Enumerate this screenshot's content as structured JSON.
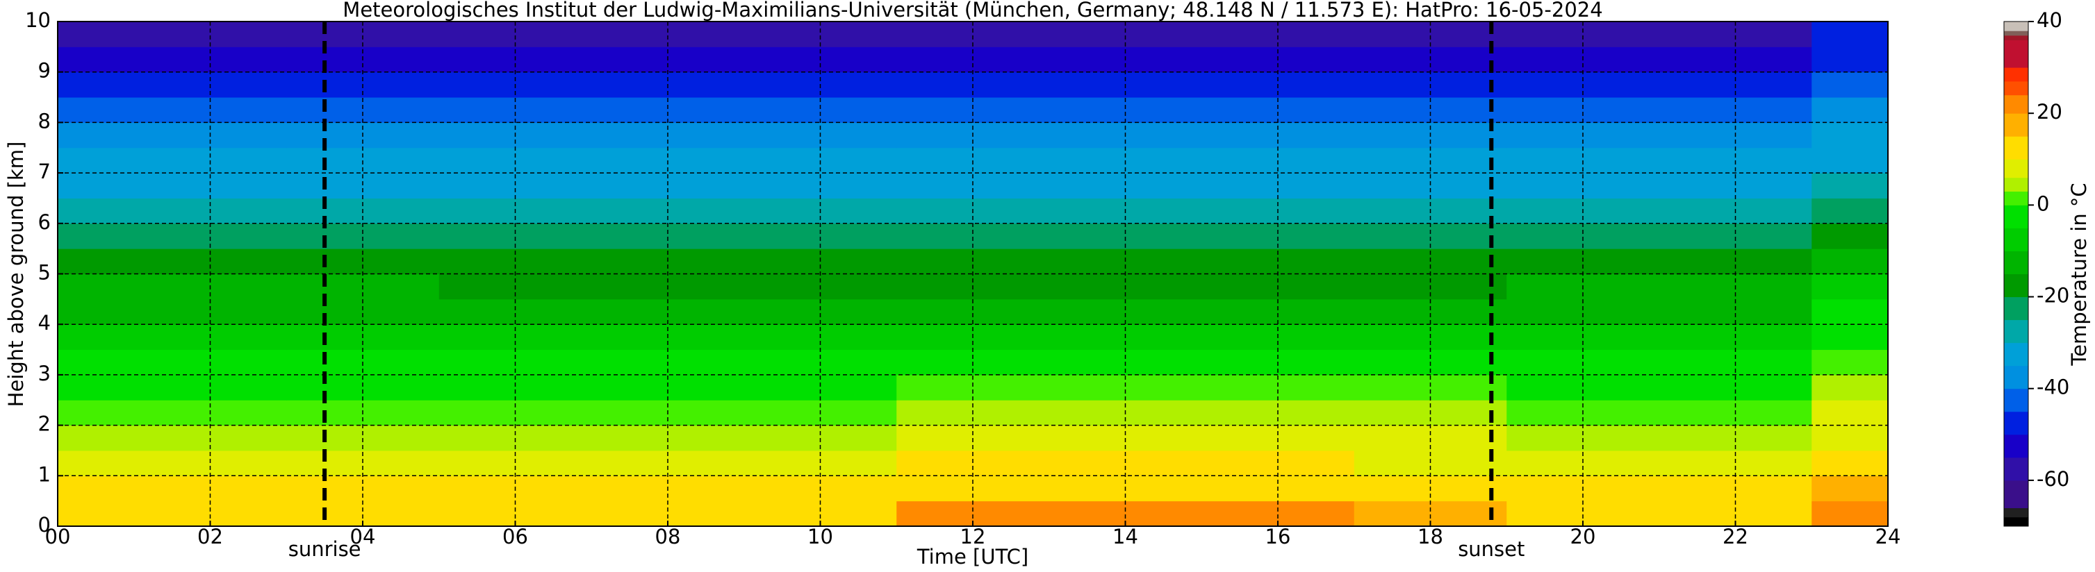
{
  "chart_data": {
    "type": "heatmap",
    "title": "Meteorologisches Institut der Ludwig-Maximilians-Universität (München, Germany; 48.148 N / 11.573 E):    HatPro: 16-05-2024",
    "x_label": "Time [UTC]",
    "y_label": "Height above ground [km]",
    "colorbar_label": "Temperature in $^\\circ$C",
    "x_bins": [
      0,
      3,
      5,
      11,
      17,
      19,
      23,
      24
    ],
    "y_bins": [
      0,
      0.5,
      1,
      1.5,
      2,
      2.5,
      3,
      3.5,
      4,
      4.5,
      5,
      5.5,
      6,
      6.5,
      7,
      7.5,
      8,
      8.5,
      9,
      9.5,
      10
    ],
    "z": [
      [
        12,
        12,
        14,
        20,
        17,
        12,
        22
      ],
      [
        10,
        10,
        11,
        14,
        13,
        10,
        16
      ],
      [
        7,
        7,
        8,
        10,
        9,
        7,
        12
      ],
      [
        4,
        4,
        5,
        6,
        6,
        5,
        9
      ],
      [
        2,
        2,
        2,
        3,
        3,
        2,
        6
      ],
      [
        -1,
        -1,
        -1,
        0,
        0,
        -1,
        4
      ],
      [
        -4,
        -4,
        -4,
        -3,
        -3,
        -4,
        2
      ],
      [
        -7,
        -7,
        -8,
        -7,
        -7,
        -7,
        -1
      ],
      [
        -11,
        -11,
        -12,
        -11,
        -11,
        -11,
        -5
      ],
      [
        -15,
        -15,
        -16,
        -16,
        -16,
        -15,
        -9
      ],
      [
        -18,
        -18,
        -20,
        -20,
        -20,
        -19,
        -13
      ],
      [
        -21,
        -21,
        -24,
        -24,
        -24,
        -23,
        -17
      ],
      [
        -27,
        -27,
        -28,
        -28,
        -28,
        -27,
        -22
      ],
      [
        -31,
        -31,
        -31,
        -31,
        -31,
        -31,
        -27
      ],
      [
        -35,
        -35,
        -35,
        -35,
        -35,
        -35,
        -31
      ],
      [
        -38,
        -38,
        -38,
        -38,
        -38,
        -38,
        -35
      ],
      [
        -42,
        -42,
        -42,
        -42,
        -42,
        -42,
        -38
      ],
      [
        -48,
        -48,
        -48,
        -48,
        -48,
        -48,
        -42
      ],
      [
        -53,
        -53,
        -53,
        -53,
        -53,
        -53,
        -46
      ],
      [
        -56,
        -56,
        -56,
        -56,
        -56,
        -56,
        -50
      ]
    ],
    "xlim": [
      0,
      24
    ],
    "ylim": [
      0,
      10
    ],
    "xticks": [
      {
        "value": 0,
        "label": "00"
      },
      {
        "value": 2,
        "label": "02"
      },
      {
        "value": 4,
        "label": "04"
      },
      {
        "value": 6,
        "label": "06"
      },
      {
        "value": 8,
        "label": "08"
      },
      {
        "value": 10,
        "label": "10"
      },
      {
        "value": 12,
        "label": "12"
      },
      {
        "value": 14,
        "label": "14"
      },
      {
        "value": 16,
        "label": "16"
      },
      {
        "value": 18,
        "label": "18"
      },
      {
        "value": 20,
        "label": "20"
      },
      {
        "value": 22,
        "label": "22"
      },
      {
        "value": 24,
        "label": "24"
      }
    ],
    "yticks": [
      0,
      1,
      2,
      3,
      4,
      5,
      6,
      7,
      8,
      9,
      10
    ],
    "grid": true,
    "clim": [
      -70,
      40
    ],
    "cticks": [
      -60,
      -40,
      -20,
      0,
      20,
      40
    ],
    "colorscale": [
      [
        -70,
        "#000000"
      ],
      [
        -68,
        "#202020"
      ],
      [
        -66,
        "#3a0f8a"
      ],
      [
        -60,
        "#3010a8"
      ],
      [
        -55,
        "#1800c8"
      ],
      [
        -50,
        "#0020e0"
      ],
      [
        -45,
        "#0060e8"
      ],
      [
        -40,
        "#0090e0"
      ],
      [
        -35,
        "#00a0d8"
      ],
      [
        -30,
        "#00a8a8"
      ],
      [
        -25,
        "#00a060"
      ],
      [
        -20,
        "#009a00"
      ],
      [
        -15,
        "#00b400"
      ],
      [
        -10,
        "#00cc00"
      ],
      [
        -5,
        "#00e000"
      ],
      [
        0,
        "#44f000"
      ],
      [
        3,
        "#b0f000"
      ],
      [
        6,
        "#e0ee00"
      ],
      [
        10,
        "#ffdd00"
      ],
      [
        15,
        "#ffb000"
      ],
      [
        20,
        "#ff8a00"
      ],
      [
        24,
        "#ff5000"
      ],
      [
        27,
        "#ff3000"
      ],
      [
        30,
        "#c01030"
      ],
      [
        36,
        "#a01828"
      ],
      [
        37,
        "#806058"
      ],
      [
        38,
        "#c8c0b8"
      ],
      [
        40,
        "#c8c0b8"
      ]
    ],
    "annotations": [
      {
        "text": "sunrise",
        "x": 3.5
      },
      {
        "text": "sunset",
        "x": 18.8
      }
    ]
  }
}
